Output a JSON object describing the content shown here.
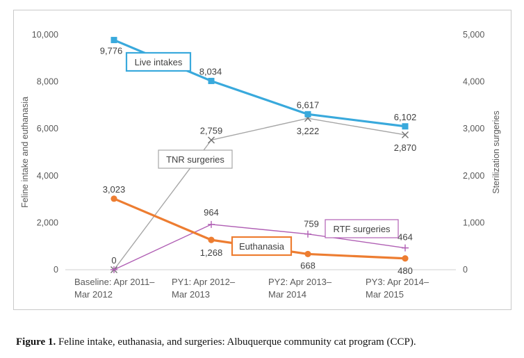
{
  "caption": {
    "label": "Figure 1.",
    "text": " Feline intake, euthanasia, and surgeries: Albuquerque community cat program (CCP)."
  },
  "chart_data": {
    "type": "line",
    "categories": [
      [
        "Baseline: Apr 2011–",
        "Mar 2012"
      ],
      [
        "PY1: Apr 2012–",
        "Mar 2013"
      ],
      [
        "PY2: Apr 2013–",
        "Mar 2014"
      ],
      [
        "PY3: Apr 2014–",
        "Mar 2015"
      ]
    ],
    "ylabel_left": "Feline intake and euthanasia",
    "ylabel_right": "Sterilization surgeries",
    "ylim_left": [
      0,
      10000
    ],
    "ylim_right": [
      0,
      5000
    ],
    "yticks_left": [
      "0",
      "2,000",
      "4,000",
      "6,000",
      "8,000",
      "10,000"
    ],
    "yticks_right": [
      "0",
      "1,000",
      "2,000",
      "3,000",
      "4,000",
      "5,000"
    ],
    "series": [
      {
        "name": "Live intakes",
        "axis": "left",
        "color": "#39a9dc",
        "marker": "square",
        "values": [
          9776,
          8034,
          6617,
          6102
        ],
        "labels": [
          "9,776",
          "8,034",
          "6,617",
          "6,102"
        ]
      },
      {
        "name": "Euthanasia",
        "axis": "left",
        "color": "#ed7d31",
        "marker": "circle",
        "values": [
          3023,
          1268,
          668,
          480
        ],
        "labels": [
          "3,023",
          "1,268",
          "668",
          "480"
        ]
      },
      {
        "name": "TNR surgeries",
        "axis": "right",
        "color": "#a6a6a6",
        "marker": "x",
        "values": [
          0,
          2759,
          3222,
          2870
        ],
        "labels": [
          "0",
          "2,759",
          "3,222",
          "2,870"
        ]
      },
      {
        "name": "RTF surgeries",
        "axis": "right",
        "color": "#b05fb4",
        "marker": "plus",
        "values": [
          0,
          964,
          759,
          464
        ],
        "labels": [
          "",
          "964",
          "759",
          "464"
        ]
      }
    ]
  }
}
